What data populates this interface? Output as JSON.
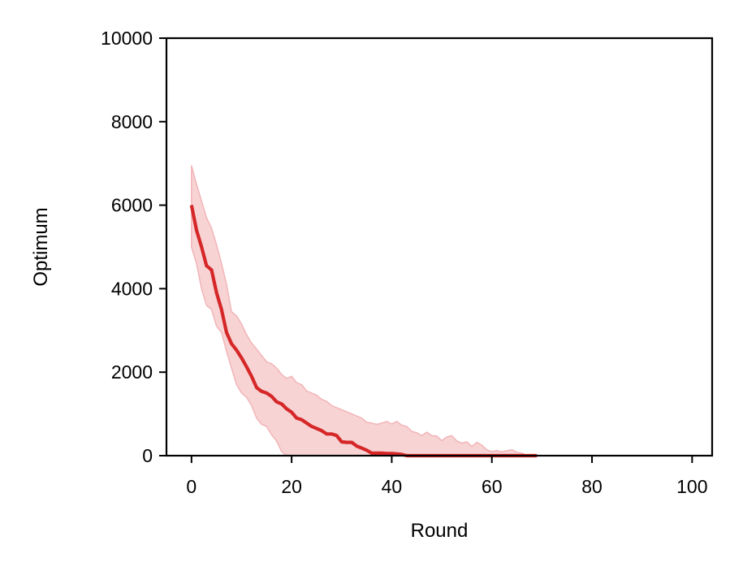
{
  "chart_data": {
    "type": "line",
    "title": "",
    "xlabel": "Round",
    "ylabel": "Optimum",
    "xlim": [
      -5,
      104
    ],
    "ylim": [
      0,
      10000
    ],
    "xticks": [
      0,
      20,
      40,
      60,
      80,
      100
    ],
    "yticks": [
      0,
      2000,
      4000,
      6000,
      8000,
      10000
    ],
    "grid": false,
    "legend": "none",
    "colors": {
      "line": "#d62728",
      "band": "#f2b5b8"
    },
    "series": [
      {
        "x": [
          0,
          1,
          2,
          3,
          4,
          5,
          6,
          7,
          8,
          9,
          10,
          11,
          12,
          13,
          14,
          15,
          16,
          17,
          18,
          19,
          20,
          21,
          22,
          23,
          24,
          25,
          26,
          27,
          28,
          29,
          30,
          31,
          32,
          33,
          34,
          35,
          36,
          37,
          38,
          39,
          40,
          41,
          42,
          43,
          44,
          45,
          46,
          47,
          48,
          49,
          50,
          51,
          52,
          53,
          54,
          55,
          56,
          57,
          58,
          59,
          60,
          61,
          62,
          63,
          64,
          65,
          66,
          67,
          68,
          69
        ],
        "values": [
          6000,
          5400,
          5000,
          4550,
          4450,
          3900,
          3500,
          2950,
          2680,
          2530,
          2340,
          2130,
          1900,
          1630,
          1540,
          1500,
          1420,
          1290,
          1240,
          1120,
          1040,
          900,
          860,
          780,
          700,
          650,
          600,
          520,
          520,
          480,
          330,
          320,
          320,
          230,
          180,
          130,
          60,
          60,
          60,
          50,
          50,
          40,
          30,
          0,
          0,
          0,
          0,
          0,
          0,
          0,
          0,
          0,
          0,
          0,
          0,
          0,
          0,
          0,
          0,
          0,
          0,
          0,
          0,
          0,
          0,
          0,
          0,
          0,
          0,
          0
        ],
        "upper": [
          6950,
          6500,
          6100,
          5700,
          5450,
          5050,
          4600,
          4100,
          3450,
          3350,
          3150,
          2900,
          2700,
          2550,
          2400,
          2250,
          2200,
          2100,
          1950,
          1850,
          1900,
          1750,
          1700,
          1550,
          1500,
          1450,
          1350,
          1300,
          1200,
          1150,
          1100,
          1050,
          1000,
          950,
          900,
          800,
          780,
          750,
          780,
          820,
          760,
          820,
          730,
          700,
          580,
          550,
          480,
          560,
          480,
          470,
          360,
          450,
          480,
          350,
          300,
          330,
          220,
          320,
          250,
          140,
          100,
          120,
          90,
          120,
          140,
          80,
          60,
          0,
          10,
          0
        ],
        "lower": [
          5000,
          4600,
          4000,
          3600,
          3500,
          3100,
          2950,
          2500,
          2100,
          1700,
          1500,
          1400,
          1200,
          900,
          750,
          700,
          500,
          350,
          100,
          0,
          0,
          0,
          0,
          0,
          0,
          0,
          0,
          0,
          0,
          0,
          0,
          0,
          0,
          0,
          0,
          0,
          0,
          0,
          0,
          0,
          0,
          0,
          0,
          0,
          0,
          0,
          0,
          0,
          0,
          0,
          0,
          0,
          0,
          0,
          0,
          0,
          0,
          0,
          0,
          0,
          0,
          0,
          0,
          0,
          0,
          0,
          0,
          0,
          0,
          0
        ]
      }
    ]
  }
}
